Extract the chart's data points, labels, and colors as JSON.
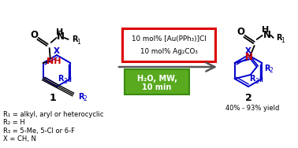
{
  "bg_color": "#ffffff",
  "arrow_color": "#555555",
  "red_box_color": "#dd0000",
  "green_box_color": "#3a8a10",
  "green_box_fill": "#5aaa20",
  "blue_color": "#0000cc",
  "red_nh_color": "#cc0000",
  "black_color": "#000000",
  "red_box_text1": "10 mol% [Au(PPh₃)]Cl",
  "red_box_text2": "10 mol% Ag₂CO₃",
  "green_box_text1": "H₂O, MW,",
  "green_box_text2": "10 min",
  "label1": "1",
  "label2": "2",
  "yield_text": "40% - 93% yield",
  "legend_r1": "R₁ = alkyl, aryl or heterocyclic",
  "legend_r2": "R₂ = H",
  "legend_r3": "R₃ = 5-Me, 5-Cl or 6-F",
  "legend_x": "X = CH, N",
  "white": "#ffffff"
}
